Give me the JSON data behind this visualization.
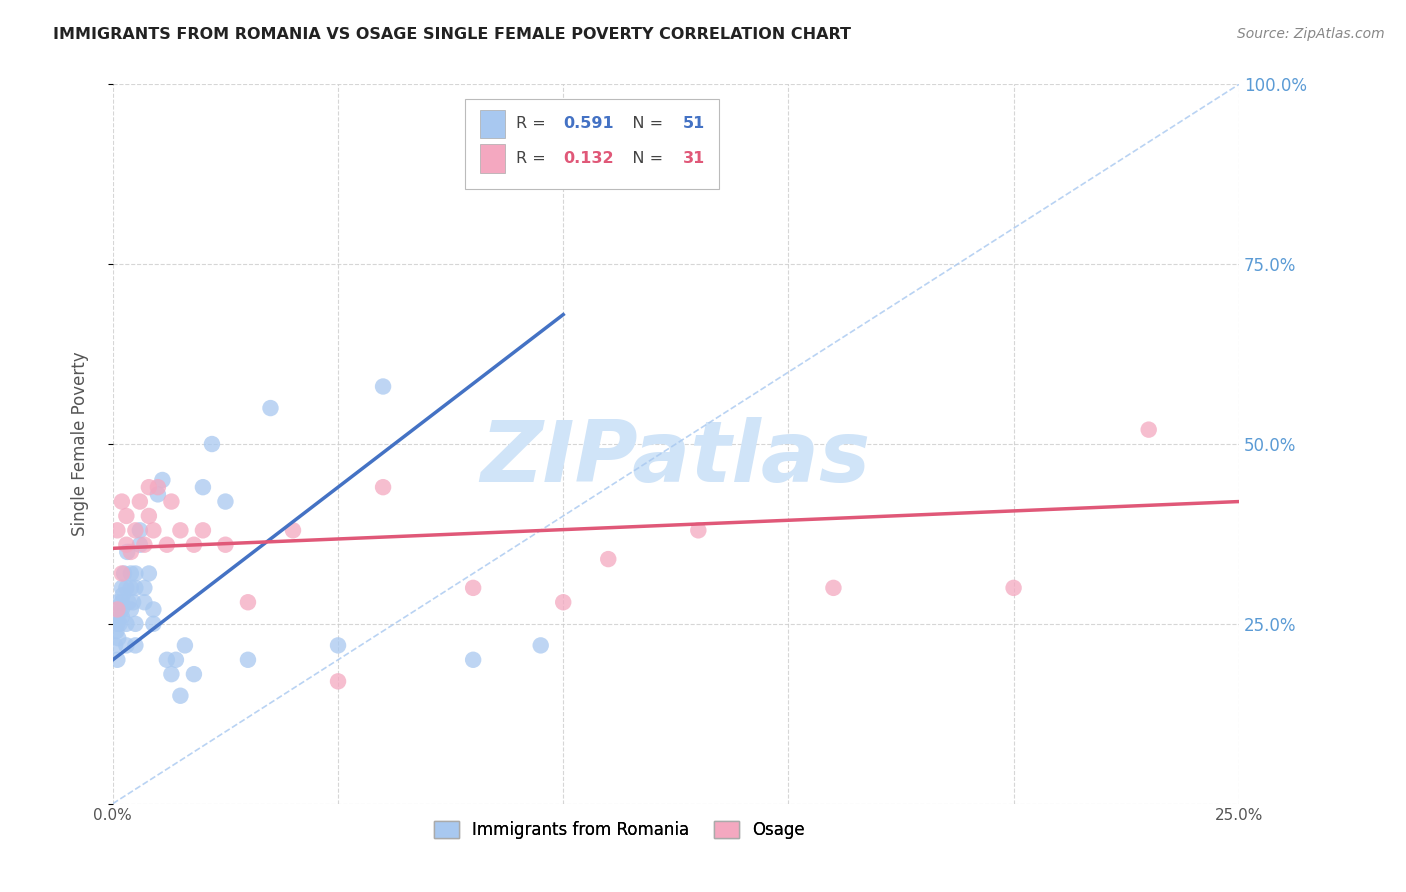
{
  "title": "IMMIGRANTS FROM ROMANIA VS OSAGE SINGLE FEMALE POVERTY CORRELATION CHART",
  "source": "Source: ZipAtlas.com",
  "ylabel": "Single Female Poverty",
  "xlim": [
    0.0,
    0.25
  ],
  "ylim": [
    0.0,
    1.0
  ],
  "xticks": [
    0.0,
    0.05,
    0.1,
    0.15,
    0.2,
    0.25
  ],
  "xtick_labels": [
    "0.0%",
    "",
    "",
    "",
    "",
    "25.0%"
  ],
  "yticks": [
    0.0,
    0.25,
    0.5,
    0.75,
    1.0
  ],
  "ytick_labels_right": [
    "",
    "25.0%",
    "50.0%",
    "75.0%",
    "100.0%"
  ],
  "legend_labels": [
    "Immigrants from Romania",
    "Osage"
  ],
  "R_romania": 0.591,
  "N_romania": 51,
  "R_osage": 0.132,
  "N_osage": 31,
  "color_romania": "#A8C8F0",
  "color_osage": "#F4A8C0",
  "color_trend_romania": "#4472C4",
  "color_trend_osage": "#E05878",
  "color_refline": "#A8C8F0",
  "color_right_axis_labels": "#5B9BD5",
  "watermark_color": "#D0E4F8",
  "romania_x": [
    0.0005,
    0.0008,
    0.001,
    0.001,
    0.001,
    0.001,
    0.0012,
    0.0015,
    0.002,
    0.002,
    0.002,
    0.002,
    0.0022,
    0.0025,
    0.003,
    0.003,
    0.003,
    0.0032,
    0.0035,
    0.004,
    0.004,
    0.004,
    0.0045,
    0.005,
    0.005,
    0.005,
    0.005,
    0.006,
    0.006,
    0.007,
    0.007,
    0.008,
    0.009,
    0.009,
    0.01,
    0.011,
    0.012,
    0.013,
    0.014,
    0.015,
    0.016,
    0.018,
    0.02,
    0.022,
    0.025,
    0.03,
    0.035,
    0.05,
    0.06,
    0.08,
    0.095
  ],
  "romania_y": [
    0.22,
    0.24,
    0.2,
    0.25,
    0.26,
    0.28,
    0.23,
    0.25,
    0.27,
    0.28,
    0.3,
    0.26,
    0.29,
    0.32,
    0.3,
    0.22,
    0.25,
    0.35,
    0.28,
    0.27,
    0.3,
    0.32,
    0.28,
    0.32,
    0.3,
    0.25,
    0.22,
    0.36,
    0.38,
    0.3,
    0.28,
    0.32,
    0.27,
    0.25,
    0.43,
    0.45,
    0.2,
    0.18,
    0.2,
    0.15,
    0.22,
    0.18,
    0.44,
    0.5,
    0.42,
    0.2,
    0.55,
    0.22,
    0.58,
    0.2,
    0.22
  ],
  "osage_x": [
    0.001,
    0.001,
    0.002,
    0.002,
    0.003,
    0.003,
    0.004,
    0.005,
    0.006,
    0.007,
    0.008,
    0.008,
    0.009,
    0.01,
    0.012,
    0.013,
    0.015,
    0.018,
    0.02,
    0.025,
    0.03,
    0.04,
    0.05,
    0.06,
    0.08,
    0.1,
    0.11,
    0.13,
    0.16,
    0.2,
    0.23
  ],
  "osage_y": [
    0.27,
    0.38,
    0.32,
    0.42,
    0.36,
    0.4,
    0.35,
    0.38,
    0.42,
    0.36,
    0.4,
    0.44,
    0.38,
    0.44,
    0.36,
    0.42,
    0.38,
    0.36,
    0.38,
    0.36,
    0.28,
    0.38,
    0.17,
    0.44,
    0.3,
    0.28,
    0.34,
    0.38,
    0.3,
    0.3,
    0.52
  ],
  "trend_romania_x0": 0.0,
  "trend_romania_y0": 0.2,
  "trend_romania_x1": 0.1,
  "trend_romania_y1": 0.68,
  "trend_osage_x0": 0.0,
  "trend_osage_y0": 0.355,
  "trend_osage_x1": 0.25,
  "trend_osage_y1": 0.42
}
